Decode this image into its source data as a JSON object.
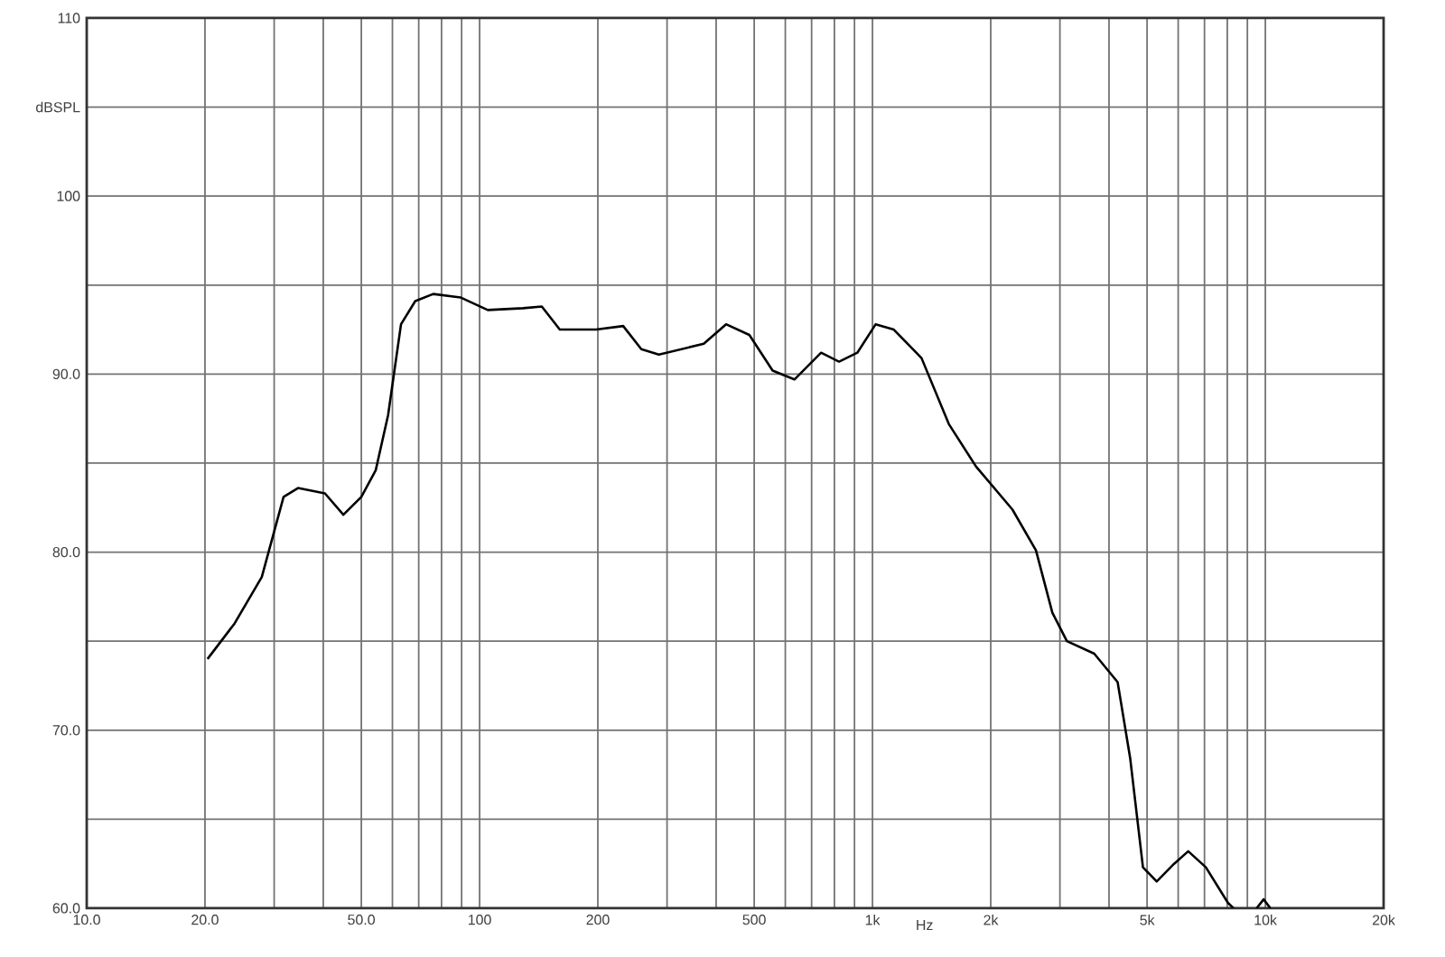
{
  "chart_data": {
    "type": "line",
    "xlabel": "Hz",
    "ylabel": "dBSPL",
    "log": "x",
    "grid": true,
    "marker": "none",
    "line_style": "solid",
    "xlim": [
      10,
      20000
    ],
    "ylim": [
      60,
      110
    ],
    "xticks": [
      {
        "value": 10,
        "label": "10.0"
      },
      {
        "value": 20,
        "label": "20.0"
      },
      {
        "value": 30,
        "label": null
      },
      {
        "value": 40,
        "label": null
      },
      {
        "value": 50,
        "label": "50.0"
      },
      {
        "value": 60,
        "label": null
      },
      {
        "value": 70,
        "label": null
      },
      {
        "value": 80,
        "label": null
      },
      {
        "value": 90,
        "label": null
      },
      100,
      200,
      {
        "value": 300,
        "label": null
      },
      {
        "value": 400,
        "label": null
      },
      500,
      {
        "value": 600,
        "label": null
      },
      {
        "value": 700,
        "label": null
      },
      {
        "value": 800,
        "label": null
      },
      {
        "value": 900,
        "label": null
      },
      {
        "value": 1000,
        "label": "1k"
      },
      {
        "value": 2000,
        "label": "2k"
      },
      {
        "value": 3000,
        "label": null
      },
      {
        "value": 4000,
        "label": null
      },
      {
        "value": 5000,
        "label": "5k"
      },
      {
        "value": 6000,
        "label": null
      },
      {
        "value": 7000,
        "label": null
      },
      {
        "value": 8000,
        "label": null
      },
      {
        "value": 9000,
        "label": null
      },
      {
        "value": 10000,
        "label": "10k"
      },
      {
        "value": 20000,
        "label": "20k"
      }
    ],
    "yticks": [
      {
        "value": 60,
        "label": "60.0"
      },
      {
        "value": 65,
        "label": null
      },
      {
        "value": 70,
        "label": "70.0"
      },
      {
        "value": 75,
        "label": null
      },
      {
        "value": 80,
        "label": "80.0"
      },
      {
        "value": 85,
        "label": null
      },
      {
        "value": 90,
        "label": "90.0"
      },
      {
        "value": 95,
        "label": null
      },
      100,
      {
        "value": 105,
        "label": null
      },
      110
    ],
    "series": [
      {
        "color": "#000000",
        "x": [
          20.3,
          23.8,
          27.9,
          31.7,
          34.5,
          40.4,
          45,
          50,
          54.4,
          58.5,
          63.1,
          68.6,
          76.2,
          89.6,
          104.9,
          129,
          144,
          160,
          198,
          232,
          258,
          286,
          372,
          424,
          486,
          557,
          633,
          740,
          822,
          915,
          1019,
          1133,
          1333,
          1564,
          1836,
          2270,
          2607,
          2870,
          3125,
          3668,
          4207,
          4530,
          4880,
          5290,
          5860,
          6364,
          7057,
          8030,
          8300,
          9000,
          9500,
          9900,
          10300
        ],
        "values": [
          74.0,
          76.0,
          78.6,
          83.1,
          83.6,
          83.3,
          82.1,
          83.1,
          84.6,
          87.7,
          92.8,
          94.1,
          94.5,
          94.3,
          93.6,
          93.7,
          93.8,
          92.5,
          92.5,
          92.7,
          91.4,
          91.1,
          91.7,
          92.8,
          92.2,
          90.2,
          89.7,
          91.2,
          90.7,
          91.2,
          92.8,
          92.5,
          90.9,
          87.2,
          84.8,
          82.4,
          80.1,
          76.6,
          75.0,
          74.3,
          72.7,
          68.4,
          62.3,
          61.5,
          62.5,
          63.2,
          62.3,
          60.3,
          60.0,
          null,
          60.0,
          60.5,
          60.0
        ]
      }
    ]
  }
}
